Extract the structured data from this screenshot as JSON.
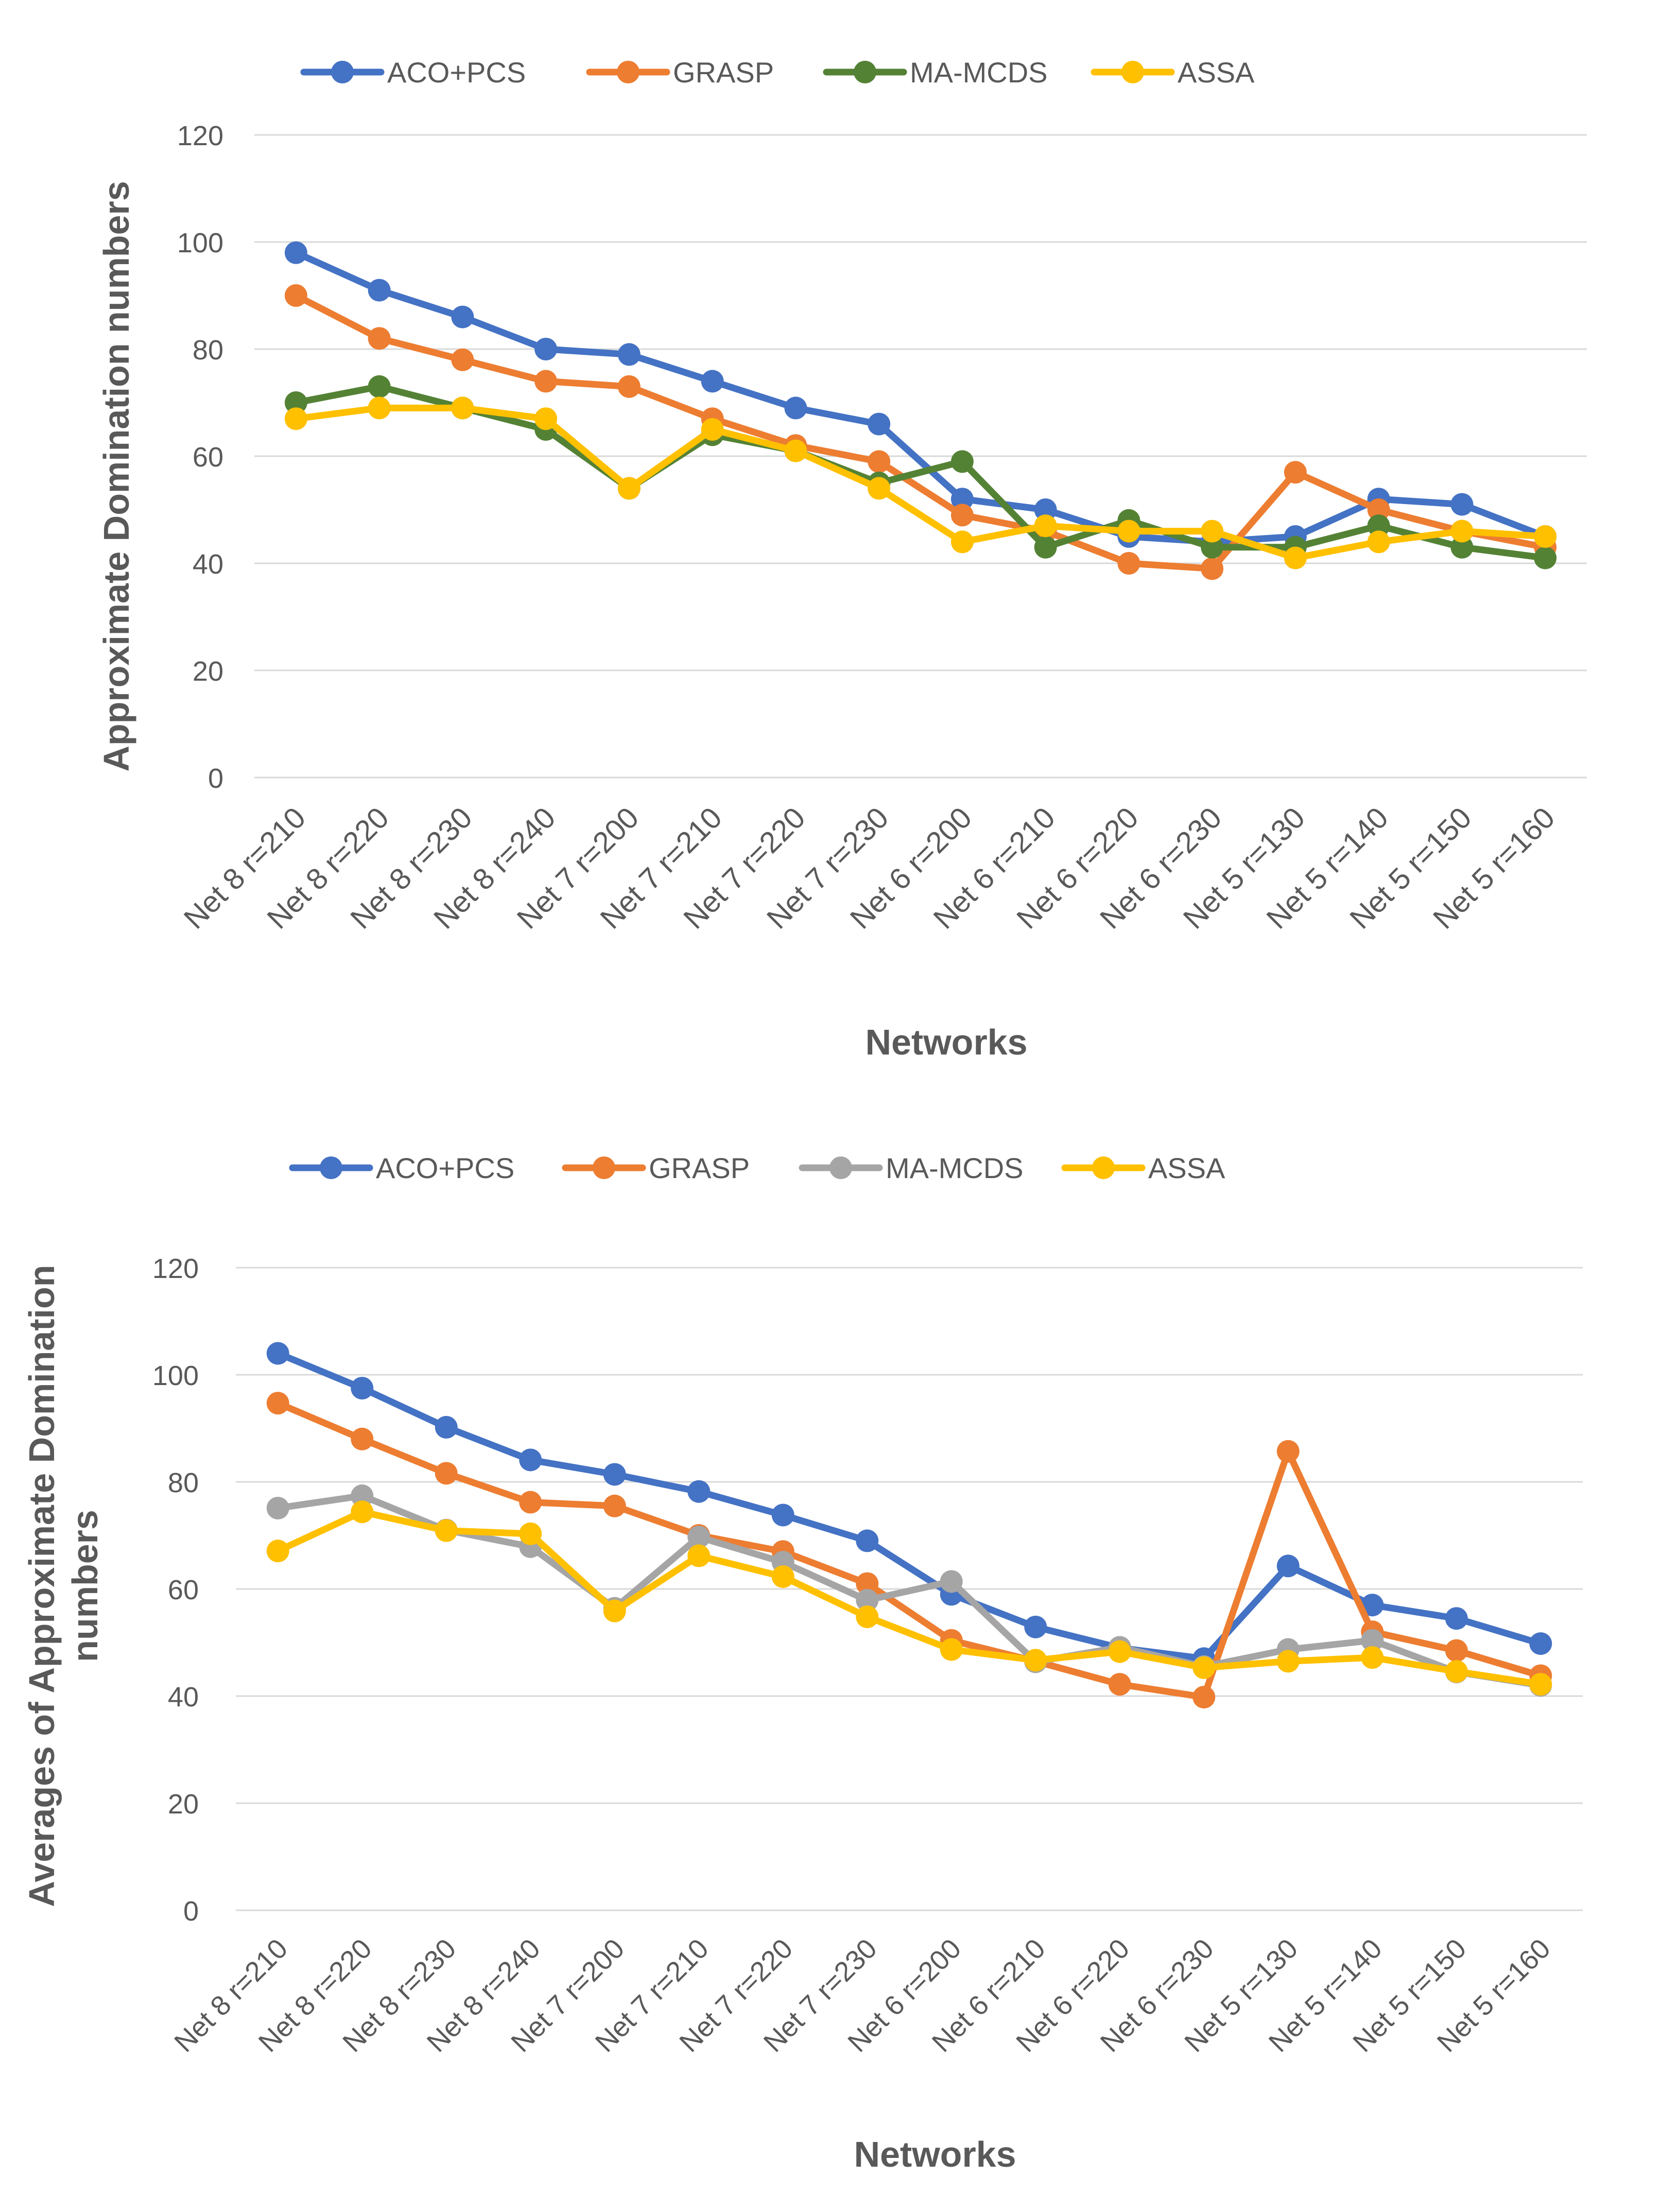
{
  "chart_data": [
    {
      "type": "line",
      "xlabel": "Networks",
      "ylabel": "Approximate Domination numbers",
      "ylim": [
        0,
        120
      ],
      "yticks": [
        0,
        20,
        40,
        60,
        80,
        100,
        120
      ],
      "grid": true,
      "legend_position": "top",
      "categories": [
        "Net 8 r=210",
        "Net 8 r=220",
        "Net 8 r=230",
        "Net 8  r=240",
        "Net 7 r=200",
        "Net 7 r=210",
        "Net 7 r=220",
        "Net 7 r=230",
        "Net 6 r=200",
        "Net 6 r=210",
        "Net 6 r=220",
        "Net 6 r=230",
        "Net 5 r=130",
        "Net 5 r=140",
        "Net 5 r=150",
        "Net 5 r=160"
      ],
      "series": [
        {
          "name": "ACO+PCS",
          "color": "#4472C4",
          "values": [
            98,
            91,
            86,
            80,
            79,
            74,
            69,
            66,
            52,
            50,
            45,
            44,
            45,
            52,
            51,
            45
          ]
        },
        {
          "name": "GRASP",
          "color": "#ED7D31",
          "values": [
            90,
            82,
            78,
            74,
            73,
            67,
            62,
            59,
            49,
            46,
            40,
            39,
            57,
            50,
            46,
            43
          ]
        },
        {
          "name": "MA-MCDS",
          "color": "#548235",
          "values": [
            70,
            73,
            69,
            65,
            54,
            64,
            61,
            55,
            59,
            43,
            48,
            43,
            43,
            47,
            43,
            41
          ]
        },
        {
          "name": "ASSA",
          "color": "#FFC000",
          "values": [
            67,
            69,
            69,
            67,
            54,
            65,
            61,
            54,
            44,
            47,
            46,
            46,
            41,
            44,
            46,
            45
          ]
        }
      ]
    },
    {
      "type": "line",
      "xlabel": "Networks",
      "ylabel": "Averages of Approximate Domination numbers",
      "ylim": [
        0,
        120
      ],
      "yticks": [
        0,
        20,
        40,
        60,
        80,
        100,
        120
      ],
      "grid": true,
      "legend_position": "top",
      "categories": [
        "Net 8 r=210",
        "Net 8 r=220",
        "Net 8 r=230",
        "Net 8 r=240",
        "Net 7 r=200",
        "Net 7 r=210",
        "Net 7 r=220",
        "Net 7 r=230",
        "Net 6 r=200",
        "Net 6 r=210",
        "Net 6 r=220",
        "Net 6 r=230",
        "Net 5 r=130",
        "Net 5 r=140",
        "Net 5 r=150",
        "Net 5 r=160"
      ],
      "series": [
        {
          "name": "ACO+PCS",
          "color": "#4472C4",
          "values": [
            104,
            97.5,
            90.2,
            84.1,
            81.4,
            78.2,
            73.8,
            69,
            59,
            52.9,
            49,
            47,
            64.3,
            57,
            54.5,
            49.8
          ]
        },
        {
          "name": "GRASP",
          "color": "#ED7D31",
          "values": [
            94.7,
            88,
            81.6,
            76.2,
            75.5,
            70,
            67,
            61,
            50.4,
            46.5,
            42.2,
            39.8,
            85.7,
            52,
            48.5,
            43.8
          ]
        },
        {
          "name": "MA-MCDS",
          "color": "#A5A5A5",
          "values": [
            75.1,
            77.4,
            71,
            67.9,
            56.4,
            69.7,
            65,
            57.9,
            61.4,
            46.4,
            49.1,
            45.5,
            48.7,
            50.4,
            44.5,
            42
          ]
        },
        {
          "name": "ASSA",
          "color": "#FFC000",
          "values": [
            67.1,
            74.4,
            70.9,
            70.3,
            55.9,
            66.2,
            62.3,
            54.8,
            48.7,
            46.7,
            48.3,
            45.3,
            46.5,
            47.2,
            44.6,
            42.2
          ]
        }
      ]
    }
  ]
}
